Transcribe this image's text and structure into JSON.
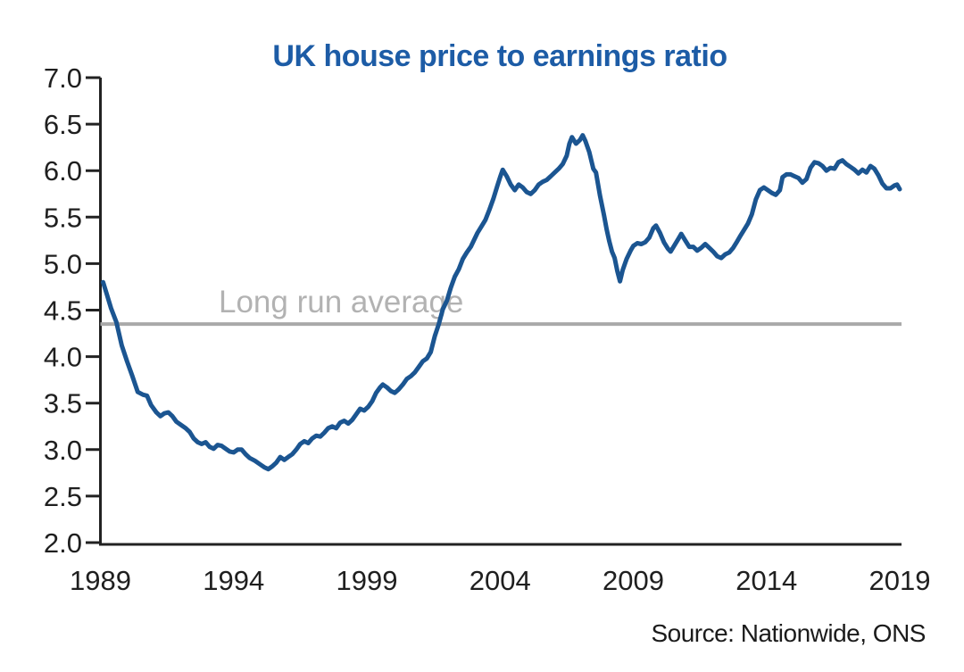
{
  "chart_data": {
    "type": "line",
    "title": "UK house price to earnings ratio",
    "source": "Source: Nationwide, ONS",
    "xlabel": "",
    "ylabel": "",
    "xlim": [
      1989,
      2019
    ],
    "ylim": [
      2.0,
      7.0
    ],
    "grid": false,
    "legend": null,
    "x_tick_years": [
      1989,
      1994,
      1999,
      2004,
      2009,
      2014,
      2019
    ],
    "x_tick_labels": [
      "1989",
      "1994",
      "1999",
      "2004",
      "2009",
      "2014",
      "2019"
    ],
    "y_ticks": [
      7.0,
      6.5,
      6.0,
      5.5,
      5.0,
      4.5,
      4.0,
      3.5,
      3.0,
      2.5,
      2.0
    ],
    "y_tick_labels": [
      "7.0",
      "6.5",
      "6.0",
      "5.5",
      "5.0",
      "4.5",
      "4.0",
      "3.5",
      "3.0",
      "2.5",
      "2.0"
    ],
    "average_line": {
      "label": "Long run average",
      "value": 4.35
    },
    "colors": {
      "line": "#1b5591",
      "title": "#1d5ca6",
      "average_line": "#a9a9a9",
      "average_label": "#b2b2b2",
      "axis": "#222222",
      "tick_text": "#1f1f1f",
      "source_text": "#1b1b1b"
    },
    "series": [
      {
        "name": "UK house price to earnings ratio",
        "points": [
          [
            1989.1,
            4.8
          ],
          [
            1989.25,
            4.66
          ],
          [
            1989.4,
            4.52
          ],
          [
            1989.6,
            4.37
          ],
          [
            1989.8,
            4.12
          ],
          [
            1990.0,
            3.95
          ],
          [
            1990.2,
            3.79
          ],
          [
            1990.4,
            3.62
          ],
          [
            1990.6,
            3.59
          ],
          [
            1990.75,
            3.58
          ],
          [
            1990.9,
            3.48
          ],
          [
            1991.1,
            3.4
          ],
          [
            1991.25,
            3.36
          ],
          [
            1991.4,
            3.39
          ],
          [
            1991.55,
            3.4
          ],
          [
            1991.7,
            3.36
          ],
          [
            1991.85,
            3.3
          ],
          [
            1992.0,
            3.27
          ],
          [
            1992.2,
            3.23
          ],
          [
            1992.35,
            3.19
          ],
          [
            1992.5,
            3.12
          ],
          [
            1992.65,
            3.08
          ],
          [
            1992.8,
            3.06
          ],
          [
            1992.95,
            3.08
          ],
          [
            1993.1,
            3.03
          ],
          [
            1993.25,
            3.01
          ],
          [
            1993.4,
            3.05
          ],
          [
            1993.55,
            3.04
          ],
          [
            1993.7,
            3.01
          ],
          [
            1993.85,
            2.98
          ],
          [
            1994.0,
            2.97
          ],
          [
            1994.15,
            3.0
          ],
          [
            1994.3,
            3.0
          ],
          [
            1994.45,
            2.95
          ],
          [
            1994.6,
            2.91
          ],
          [
            1994.8,
            2.88
          ],
          [
            1995.0,
            2.84
          ],
          [
            1995.15,
            2.81
          ],
          [
            1995.3,
            2.79
          ],
          [
            1995.45,
            2.82
          ],
          [
            1995.6,
            2.86
          ],
          [
            1995.75,
            2.92
          ],
          [
            1995.9,
            2.89
          ],
          [
            1996.05,
            2.92
          ],
          [
            1996.2,
            2.95
          ],
          [
            1996.35,
            3.0
          ],
          [
            1996.5,
            3.06
          ],
          [
            1996.65,
            3.09
          ],
          [
            1996.8,
            3.07
          ],
          [
            1996.95,
            3.12
          ],
          [
            1997.1,
            3.15
          ],
          [
            1997.25,
            3.14
          ],
          [
            1997.4,
            3.18
          ],
          [
            1997.55,
            3.23
          ],
          [
            1997.7,
            3.25
          ],
          [
            1997.85,
            3.23
          ],
          [
            1998.0,
            3.29
          ],
          [
            1998.15,
            3.31
          ],
          [
            1998.3,
            3.28
          ],
          [
            1998.45,
            3.32
          ],
          [
            1998.6,
            3.38
          ],
          [
            1998.75,
            3.44
          ],
          [
            1998.9,
            3.42
          ],
          [
            1999.05,
            3.46
          ],
          [
            1999.2,
            3.52
          ],
          [
            1999.35,
            3.61
          ],
          [
            1999.5,
            3.67
          ],
          [
            1999.6,
            3.7
          ],
          [
            1999.75,
            3.67
          ],
          [
            1999.9,
            3.63
          ],
          [
            2000.05,
            3.61
          ],
          [
            2000.2,
            3.65
          ],
          [
            2000.35,
            3.7
          ],
          [
            2000.5,
            3.76
          ],
          [
            2000.65,
            3.79
          ],
          [
            2000.8,
            3.83
          ],
          [
            2000.95,
            3.89
          ],
          [
            2001.1,
            3.95
          ],
          [
            2001.25,
            3.98
          ],
          [
            2001.4,
            4.05
          ],
          [
            2001.55,
            4.22
          ],
          [
            2001.7,
            4.35
          ],
          [
            2001.85,
            4.51
          ],
          [
            2002.0,
            4.6
          ],
          [
            2002.15,
            4.74
          ],
          [
            2002.3,
            4.86
          ],
          [
            2002.45,
            4.94
          ],
          [
            2002.6,
            5.05
          ],
          [
            2002.75,
            5.12
          ],
          [
            2002.9,
            5.18
          ],
          [
            2003.0,
            5.24
          ],
          [
            2003.15,
            5.33
          ],
          [
            2003.3,
            5.4
          ],
          [
            2003.45,
            5.47
          ],
          [
            2003.6,
            5.58
          ],
          [
            2003.75,
            5.7
          ],
          [
            2003.9,
            5.84
          ],
          [
            2004.0,
            5.93
          ],
          [
            2004.1,
            6.01
          ],
          [
            2004.25,
            5.94
          ],
          [
            2004.4,
            5.85
          ],
          [
            2004.55,
            5.79
          ],
          [
            2004.7,
            5.85
          ],
          [
            2004.85,
            5.82
          ],
          [
            2005.0,
            5.77
          ],
          [
            2005.15,
            5.75
          ],
          [
            2005.3,
            5.79
          ],
          [
            2005.45,
            5.85
          ],
          [
            2005.6,
            5.88
          ],
          [
            2005.75,
            5.9
          ],
          [
            2005.9,
            5.94
          ],
          [
            2006.05,
            5.98
          ],
          [
            2006.2,
            6.02
          ],
          [
            2006.35,
            6.07
          ],
          [
            2006.5,
            6.16
          ],
          [
            2006.6,
            6.29
          ],
          [
            2006.7,
            6.36
          ],
          [
            2006.85,
            6.29
          ],
          [
            2007.0,
            6.33
          ],
          [
            2007.1,
            6.38
          ],
          [
            2007.2,
            6.32
          ],
          [
            2007.35,
            6.2
          ],
          [
            2007.5,
            6.02
          ],
          [
            2007.6,
            5.98
          ],
          [
            2007.75,
            5.73
          ],
          [
            2007.9,
            5.52
          ],
          [
            2008.0,
            5.37
          ],
          [
            2008.1,
            5.24
          ],
          [
            2008.2,
            5.13
          ],
          [
            2008.3,
            5.06
          ],
          [
            2008.4,
            4.92
          ],
          [
            2008.5,
            4.81
          ],
          [
            2008.6,
            4.93
          ],
          [
            2008.75,
            5.05
          ],
          [
            2008.9,
            5.14
          ],
          [
            2009.0,
            5.19
          ],
          [
            2009.15,
            5.22
          ],
          [
            2009.3,
            5.21
          ],
          [
            2009.45,
            5.23
          ],
          [
            2009.6,
            5.28
          ],
          [
            2009.75,
            5.38
          ],
          [
            2009.85,
            5.41
          ],
          [
            2010.0,
            5.33
          ],
          [
            2010.15,
            5.23
          ],
          [
            2010.3,
            5.16
          ],
          [
            2010.4,
            5.13
          ],
          [
            2010.55,
            5.2
          ],
          [
            2010.7,
            5.27
          ],
          [
            2010.8,
            5.32
          ],
          [
            2010.95,
            5.25
          ],
          [
            2011.1,
            5.18
          ],
          [
            2011.25,
            5.18
          ],
          [
            2011.4,
            5.14
          ],
          [
            2011.55,
            5.17
          ],
          [
            2011.7,
            5.21
          ],
          [
            2011.85,
            5.17
          ],
          [
            2012.0,
            5.13
          ],
          [
            2012.15,
            5.08
          ],
          [
            2012.3,
            5.06
          ],
          [
            2012.45,
            5.1
          ],
          [
            2012.6,
            5.12
          ],
          [
            2012.75,
            5.17
          ],
          [
            2012.9,
            5.24
          ],
          [
            2013.0,
            5.29
          ],
          [
            2013.15,
            5.36
          ],
          [
            2013.3,
            5.43
          ],
          [
            2013.45,
            5.53
          ],
          [
            2013.6,
            5.69
          ],
          [
            2013.75,
            5.79
          ],
          [
            2013.9,
            5.82
          ],
          [
            2014.05,
            5.79
          ],
          [
            2014.2,
            5.76
          ],
          [
            2014.35,
            5.74
          ],
          [
            2014.5,
            5.79
          ],
          [
            2014.6,
            5.93
          ],
          [
            2014.75,
            5.96
          ],
          [
            2014.9,
            5.96
          ],
          [
            2015.05,
            5.94
          ],
          [
            2015.2,
            5.92
          ],
          [
            2015.35,
            5.87
          ],
          [
            2015.5,
            5.91
          ],
          [
            2015.65,
            6.03
          ],
          [
            2015.8,
            6.09
          ],
          [
            2015.95,
            6.08
          ],
          [
            2016.1,
            6.05
          ],
          [
            2016.25,
            6.0
          ],
          [
            2016.4,
            6.03
          ],
          [
            2016.55,
            6.02
          ],
          [
            2016.7,
            6.09
          ],
          [
            2016.85,
            6.11
          ],
          [
            2017.0,
            6.07
          ],
          [
            2017.15,
            6.04
          ],
          [
            2017.3,
            6.01
          ],
          [
            2017.45,
            5.97
          ],
          [
            2017.6,
            6.01
          ],
          [
            2017.75,
            5.98
          ],
          [
            2017.9,
            6.05
          ],
          [
            2018.05,
            6.02
          ],
          [
            2018.2,
            5.95
          ],
          [
            2018.35,
            5.86
          ],
          [
            2018.5,
            5.81
          ],
          [
            2018.65,
            5.81
          ],
          [
            2018.8,
            5.84
          ],
          [
            2018.9,
            5.85
          ],
          [
            2019.0,
            5.8
          ]
        ]
      }
    ]
  }
}
